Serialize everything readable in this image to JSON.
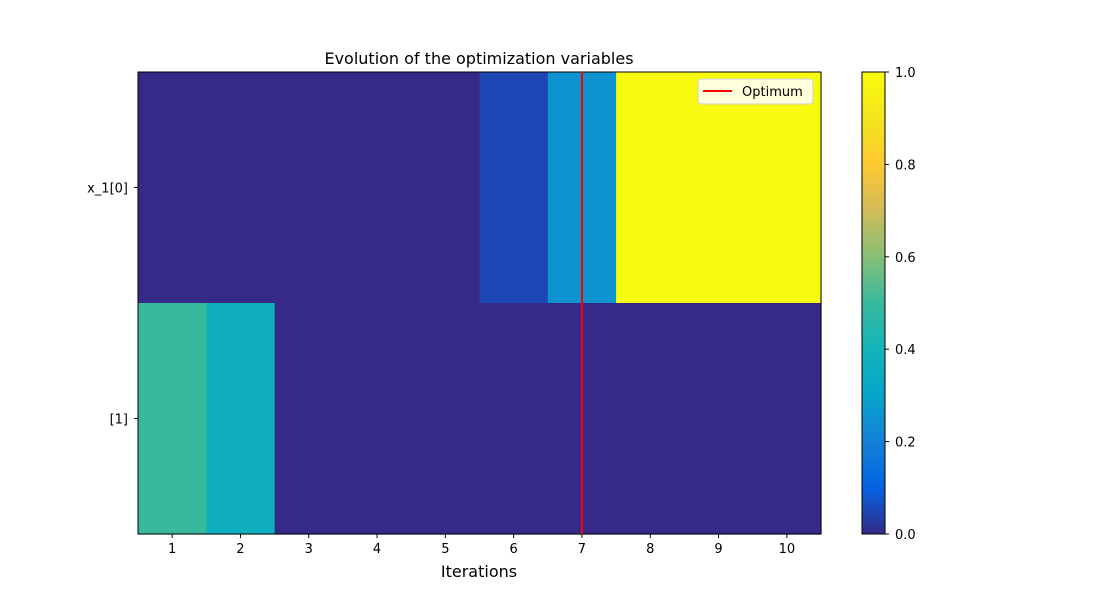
{
  "chart_data": {
    "type": "heatmap",
    "title": "Evolution of the optimization variables",
    "xlabel": "Iterations",
    "ylabel": "",
    "x": [
      1,
      2,
      3,
      4,
      5,
      6,
      7,
      8,
      9,
      10
    ],
    "x_tick_labels": [
      "1",
      "2",
      "3",
      "4",
      "5",
      "6",
      "7",
      "8",
      "9",
      "10"
    ],
    "rows": [
      "x_1[0]",
      "[1]"
    ],
    "values": [
      [
        0.0,
        0.0,
        0.0,
        0.0,
        0.0,
        0.05,
        0.25,
        1.0,
        1.0,
        1.0
      ],
      [
        0.5,
        0.37,
        0.0,
        0.0,
        0.0,
        0.0,
        0.0,
        0.0,
        0.0,
        0.0
      ]
    ],
    "colorbar": {
      "range": [
        0.0,
        1.0
      ],
      "tick_labels": [
        "0.0",
        "0.2",
        "0.4",
        "0.6",
        "0.8",
        "1.0"
      ],
      "colormap": "parula"
    },
    "optimum": {
      "iteration": 7,
      "color": "#ff0000"
    },
    "legend": {
      "entries": [
        "Optimum"
      ],
      "placement": "upper-right"
    }
  }
}
